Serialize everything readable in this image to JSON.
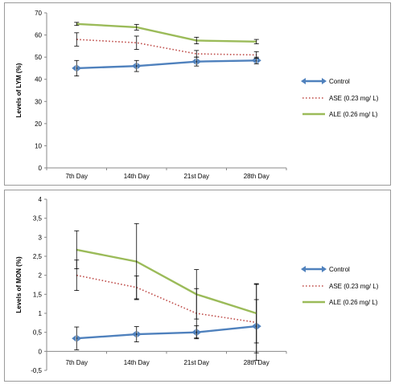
{
  "chart_data": [
    {
      "type": "line",
      "title": "",
      "xlabel": "",
      "ylabel": "Levels of LYM (%)",
      "categories": [
        "7th Day",
        "14th Day",
        "21st Day",
        "28th Day"
      ],
      "ylim": [
        0,
        70
      ],
      "yticks": [
        "0",
        "10",
        "20",
        "30",
        "40",
        "50",
        "60",
        "70"
      ],
      "legend_position": "right",
      "series": [
        {
          "name": "Control",
          "values": [
            45,
            46,
            48,
            48.5
          ],
          "errors": [
            3.5,
            2.5,
            2,
            1.5
          ],
          "color": "#4f81bd",
          "style": "solid-arrows"
        },
        {
          "name": "ASE (0.23 mg/ L)",
          "values": [
            58,
            56.5,
            51.5,
            51
          ],
          "errors": [
            3,
            3,
            1.5,
            1.5
          ],
          "color": "#c0504d",
          "style": "dotted"
        },
        {
          "name": "ALE (0.26 mg/ L)",
          "values": [
            65,
            63.5,
            57.5,
            57
          ],
          "errors": [
            0.7,
            1.3,
            1.5,
            1
          ],
          "color": "#9bbb59",
          "style": "solid"
        }
      ]
    },
    {
      "type": "line",
      "title": "",
      "xlabel": "",
      "ylabel": "Levels of MON (%)",
      "categories": [
        "7th Day",
        "14th Day",
        "21st Day",
        "28th Day"
      ],
      "ylim": [
        -0.5,
        4
      ],
      "yticks": [
        "-0,5",
        "0",
        "0,5",
        "1",
        "1,5",
        "2",
        "2,5",
        "3",
        "3,5",
        "4"
      ],
      "legend_position": "right",
      "series": [
        {
          "name": "Control",
          "values": [
            0.34,
            0.45,
            0.5,
            0.66
          ],
          "errors": [
            0.3,
            0.2,
            0.17,
            0.7
          ],
          "color": "#4f81bd",
          "style": "solid-arrows"
        },
        {
          "name": "ASE (0.23 mg/ L)",
          "values": [
            2.0,
            1.68,
            1.0,
            0.76
          ],
          "errors": [
            0.4,
            0.3,
            0.65,
            1.0
          ],
          "color": "#c0504d",
          "style": "dotted"
        },
        {
          "name": "ALE (0.26 mg/ L)",
          "values": [
            2.67,
            2.36,
            1.5,
            1.0
          ],
          "errors": [
            0.5,
            1.0,
            0.65,
            0.78
          ],
          "color": "#9bbb59",
          "style": "solid"
        }
      ]
    }
  ]
}
